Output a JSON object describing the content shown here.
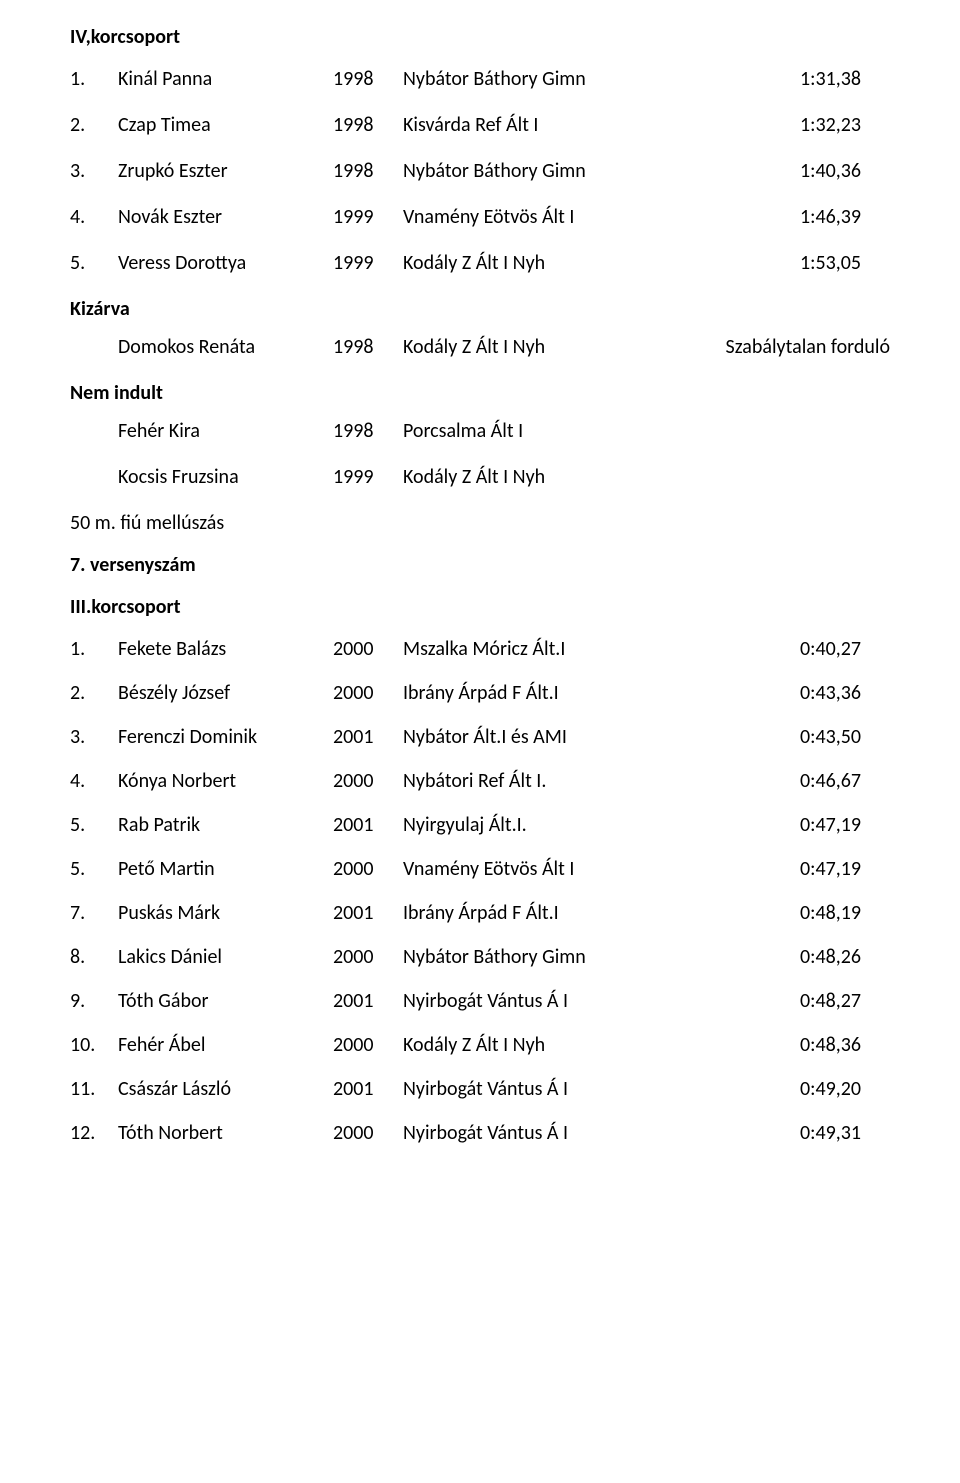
{
  "top_heading": "IV,korcsoport",
  "block1": [
    {
      "rank": "1.",
      "name": "Kinál Panna",
      "year": "1998",
      "school": "Nybátor Báthory Gimn",
      "time": "1:31,38"
    },
    {
      "rank": "2.",
      "name": "Czap Timea",
      "year": "1998",
      "school": "Kisvárda Ref Ált I",
      "time": "1:32,23"
    },
    {
      "rank": "3.",
      "name": "Zrupkó Eszter",
      "year": "1998",
      "school": "Nybátor Báthory Gimn",
      "time": "1:40,36"
    },
    {
      "rank": "4.",
      "name": "Novák Eszter",
      "year": "1999",
      "school": "Vnamény Eötvös Ált I",
      "time": "1:46,39"
    },
    {
      "rank": "5.",
      "name": "Veress Dorottya",
      "year": "1999",
      "school": "Kodály Z Ált I Nyh",
      "time": "1:53,05"
    }
  ],
  "kizarva_label": "Kizárva",
  "kizarva_rows": [
    {
      "name": "Domokos Renáta",
      "year": "1998",
      "school": "Kodály Z Ált I Nyh",
      "time": "Szabálytalan forduló"
    }
  ],
  "nemindult_label": "Nem indult",
  "nemindult_rows": [
    {
      "name": "Fehér Kira",
      "year": "1998",
      "school": "Porcsalma Ált I",
      "time": ""
    },
    {
      "name": "Kocsis Fruzsina",
      "year": "1999",
      "school": "Kodály Z Ált I Nyh",
      "time": ""
    }
  ],
  "mid_heading": "50 m. fiú mellúszás",
  "verseny_label": "7. versenyszám",
  "group_label": "III.korcsoport",
  "block2": [
    {
      "rank": "1.",
      "name": "Fekete Balázs",
      "year": "2000",
      "school": "Mszalka Móricz Ált.I",
      "time": "0:40,27"
    },
    {
      "rank": "2.",
      "name": "Bészély József",
      "year": "2000",
      "school": "Ibrány Árpád F Ált.I",
      "time": "0:43,36"
    },
    {
      "rank": "3.",
      "name": "Ferenczi Dominik",
      "year": "2001",
      "school": "Nybátor Ált.I és AMI",
      "time": "0:43,50"
    },
    {
      "rank": "4.",
      "name": "Kónya Norbert",
      "year": "2000",
      "school": "Nybátori Ref Ált I.",
      "time": "0:46,67"
    },
    {
      "rank": "5.",
      "name": "Rab Patrik",
      "year": "2001",
      "school": "Nyirgyulaj Ált.I.",
      "time": "0:47,19"
    },
    {
      "rank": "5.",
      "name": "Pető Martin",
      "year": "2000",
      "school": "Vnamény Eötvös Ált I",
      "time": "0:47,19"
    },
    {
      "rank": "7.",
      "name": "Puskás Márk",
      "year": "2001",
      "school": "Ibrány Árpád F Ált.I",
      "time": "0:48,19"
    },
    {
      "rank": "8.",
      "name": "Lakics Dániel",
      "year": "2000",
      "school": "Nybátor Báthory Gimn",
      "time": "0:48,26"
    },
    {
      "rank": "9.",
      "name": "Tóth Gábor",
      "year": "2001",
      "school": "Nyirbogát Vántus Á I",
      "time": "0:48,27"
    },
    {
      "rank": "10.",
      "name": "Fehér Ábel",
      "year": "2000",
      "school": "Kodály Z Ált I Nyh",
      "time": "0:48,36"
    },
    {
      "rank": "11.",
      "name": "Császár László",
      "year": "2001",
      "school": "Nyirbogát Vántus Á I",
      "time": "0:49,20"
    },
    {
      "rank": "12.",
      "name": "Tóth Norbert",
      "year": "2000",
      "school": "Nyirbogát Vántus Á I",
      "time": "0:49,31"
    }
  ]
}
